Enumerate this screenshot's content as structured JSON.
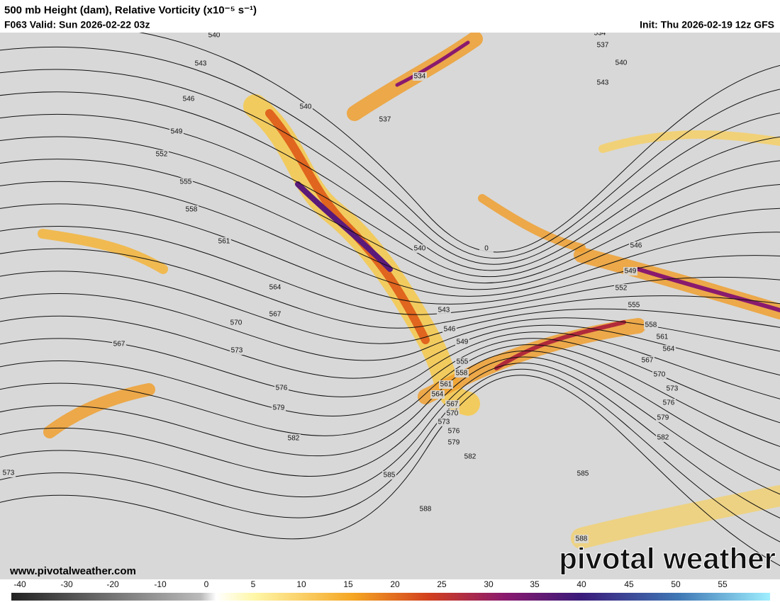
{
  "header": {
    "title": "500 mb Height (dam), Relative Vorticity (x10⁻⁵ s⁻¹)",
    "valid": "F063 Valid: Sun 2026-02-22 03z",
    "init": "Init: Thu 2026-02-19 12z GFS"
  },
  "contour_labels": [
    540,
    543,
    546,
    549,
    552,
    555,
    558,
    561,
    564,
    567,
    570,
    573,
    576,
    579,
    582,
    585,
    588,
    567,
    573,
    540,
    537,
    534,
    534,
    537,
    540,
    543,
    540,
    0,
    543,
    546,
    549,
    555,
    558,
    561,
    564,
    567,
    570,
    573,
    576,
    579,
    582,
    546,
    549,
    552,
    555,
    558,
    561,
    564,
    567,
    570,
    573,
    576,
    579,
    582,
    585,
    588
  ],
  "colorbar": {
    "ticks": [
      -40,
      -30,
      -20,
      -10,
      0,
      5,
      10,
      15,
      20,
      25,
      30,
      35,
      40,
      45,
      50,
      55
    ]
  },
  "footer": {
    "website": "www.pivotalweather.com",
    "logo": "pivotal weather"
  }
}
